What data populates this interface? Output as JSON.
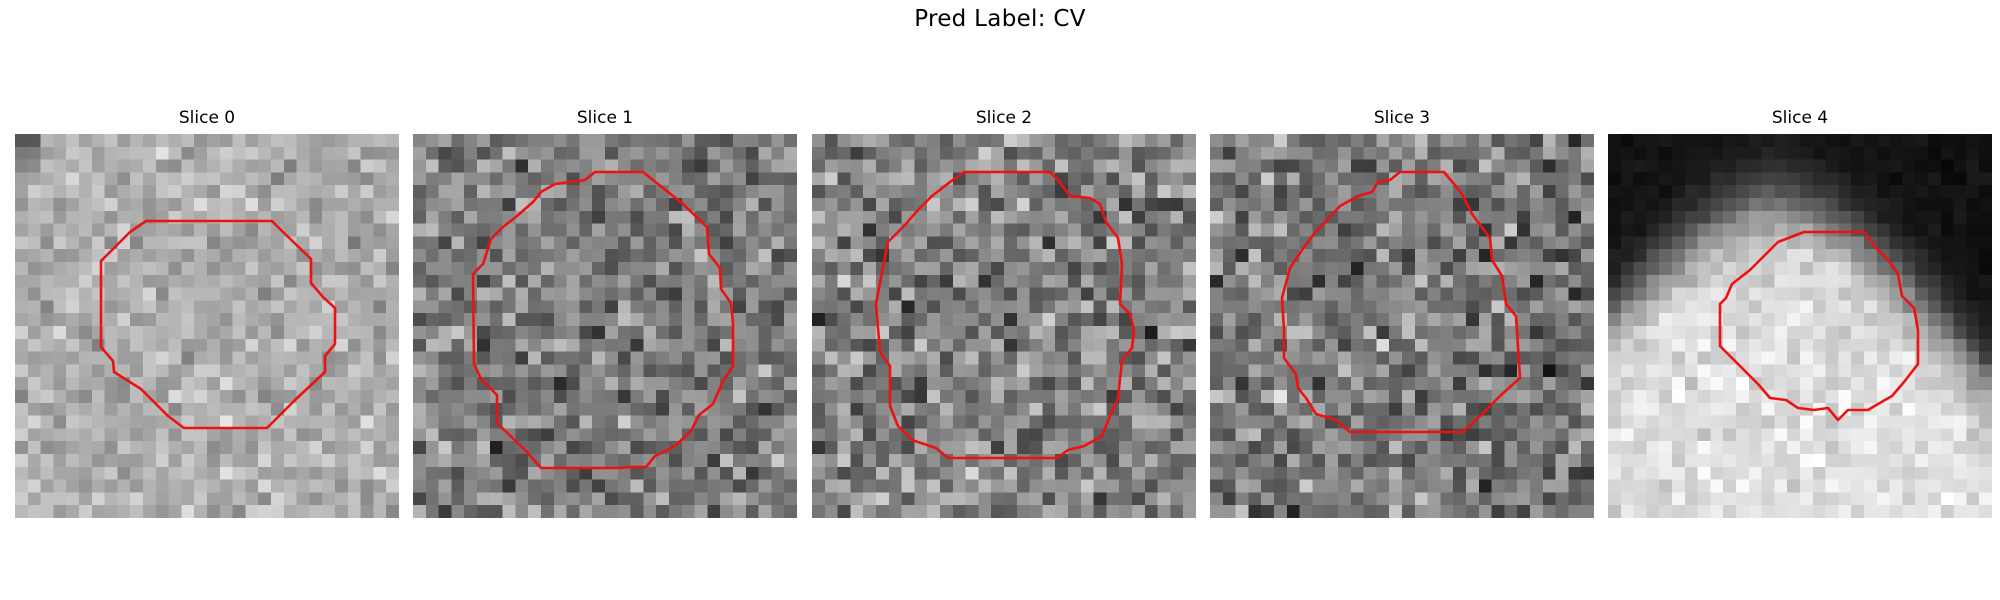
{
  "figure": {
    "suptitle": "Pred Label: CV",
    "slices": [
      {
        "title": "Slice 0"
      },
      {
        "title": "Slice 1"
      },
      {
        "title": "Slice 2"
      },
      {
        "title": "Slice 3"
      },
      {
        "title": "Slice 4"
      }
    ],
    "contour_color": "#ee1111",
    "colormap": "gray"
  }
}
